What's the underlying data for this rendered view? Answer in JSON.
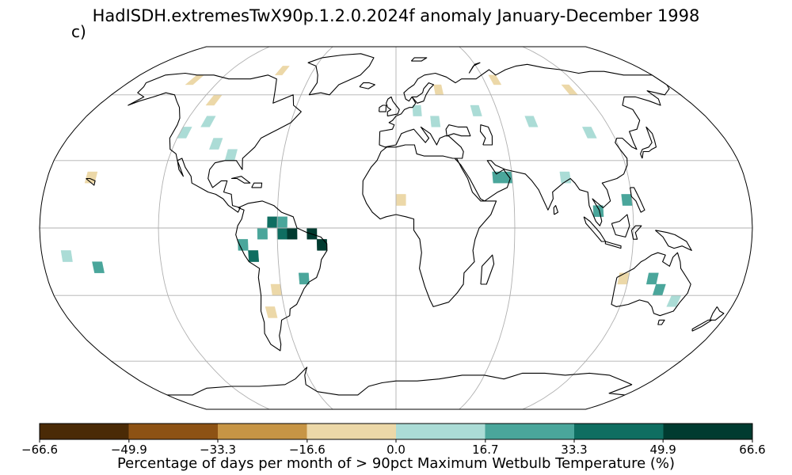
{
  "figure": {
    "title": "HadISDH.extremesTwX90p.1.2.0.2024f anomaly January-December 1998",
    "panel_label": "c)"
  },
  "map": {
    "projection": "robinson",
    "gridlines": true,
    "coastlines": true,
    "missing_data_color": "#ffffff"
  },
  "colorbar": {
    "label": "Percentage of days per month of > 90pct Maximum Wetbulb Temperature (%)",
    "boundaries": [
      -66.6,
      -49.9,
      -33.3,
      -16.6,
      0.0,
      16.7,
      33.3,
      49.9,
      66.6
    ],
    "tick_labels": [
      "−66.6",
      "−49.9",
      "−33.3",
      "−16.6",
      "0.0",
      "16.7",
      "33.3",
      "49.9",
      "66.6"
    ],
    "colors": [
      "#4a2a06",
      "#8d5214",
      "#c79545",
      "#ecd8a8",
      "#abdcd6",
      "#4aa69b",
      "#0f6e61",
      "#003b30"
    ]
  },
  "chart_data": {
    "type": "heatmap",
    "title": "HadISDH.extremesTwX90p.1.2.0.2024f anomaly January-December 1998",
    "color_label": "Percentage of days per month of > 90pct Maximum Wetbulb Temperature (%)",
    "value_range": [
      -66.6,
      66.6
    ],
    "grid_resolution_deg": 5,
    "cells_note_units": "lon/lat cell centres in degrees, value in %",
    "cells": [
      {
        "lon": -57.5,
        "lat": -2.5,
        "value": 40
      },
      {
        "lon": -52.5,
        "lat": -2.5,
        "value": 55
      },
      {
        "lon": -42.5,
        "lat": -2.5,
        "value": 55
      },
      {
        "lon": -37.5,
        "lat": -7.5,
        "value": 60
      },
      {
        "lon": -62.5,
        "lat": 2.5,
        "value": 45
      },
      {
        "lon": -72.5,
        "lat": -12.5,
        "value": 40
      },
      {
        "lon": -77.5,
        "lat": -7.5,
        "value": 25
      },
      {
        "lon": -67.5,
        "lat": -2.5,
        "value": 25
      },
      {
        "lon": -57.5,
        "lat": 2.5,
        "value": 25
      },
      {
        "lon": 57.5,
        "lat": 22.5,
        "value": 25
      },
      {
        "lon": 52.5,
        "lat": 22.5,
        "value": 20
      },
      {
        "lon": 132.5,
        "lat": -22.5,
        "value": 20
      },
      {
        "lon": 137.5,
        "lat": -27.5,
        "value": 25
      },
      {
        "lon": -152.5,
        "lat": -17.5,
        "value": 20
      },
      {
        "lon": -47.5,
        "lat": -22.5,
        "value": 20
      },
      {
        "lon": 117.5,
        "lat": 12.5,
        "value": 20
      },
      {
        "lon": 102.5,
        "lat": 7.5,
        "value": 20
      },
      {
        "lon": -117.5,
        "lat": 42.5,
        "value": 8
      },
      {
        "lon": -107.5,
        "lat": 47.5,
        "value": 8
      },
      {
        "lon": -97.5,
        "lat": 37.5,
        "value": 8
      },
      {
        "lon": -87.5,
        "lat": 32.5,
        "value": 8
      },
      {
        "lon": 12.5,
        "lat": 52.5,
        "value": 8
      },
      {
        "lon": 22.5,
        "lat": 47.5,
        "value": 8
      },
      {
        "lon": 47.5,
        "lat": 52.5,
        "value": 8
      },
      {
        "lon": 77.5,
        "lat": 47.5,
        "value": 8
      },
      {
        "lon": 107.5,
        "lat": 42.5,
        "value": 8
      },
      {
        "lon": 87.5,
        "lat": 22.5,
        "value": 8
      },
      {
        "lon": 147.5,
        "lat": -32.5,
        "value": 8
      },
      {
        "lon": -167.5,
        "lat": -12.5,
        "value": 8
      },
      {
        "lon": -112.5,
        "lat": 57.5,
        "value": -8
      },
      {
        "lon": -82.5,
        "lat": 72.5,
        "value": -8
      },
      {
        "lon": -137.5,
        "lat": 67.5,
        "value": -8
      },
      {
        "lon": 27.5,
        "lat": 62.5,
        "value": -8
      },
      {
        "lon": 67.5,
        "lat": 67.5,
        "value": -8
      },
      {
        "lon": 112.5,
        "lat": 62.5,
        "value": -8
      },
      {
        "lon": -62.5,
        "lat": -27.5,
        "value": -8
      },
      {
        "lon": -67.5,
        "lat": -37.5,
        "value": -8
      },
      {
        "lon": 117.5,
        "lat": -22.5,
        "value": -8
      },
      {
        "lon": -157.5,
        "lat": 22.5,
        "value": -8
      },
      {
        "lon": 2.5,
        "lat": 12.5,
        "value": -8
      }
    ]
  }
}
